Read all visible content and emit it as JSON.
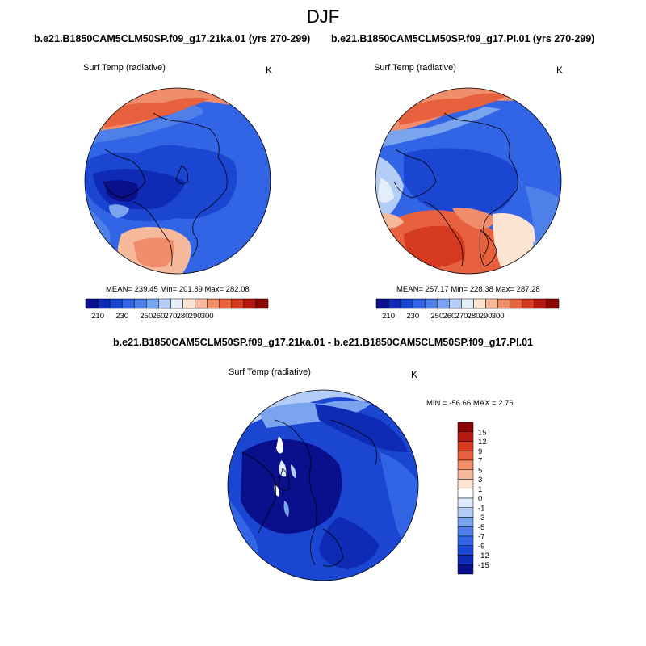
{
  "season": "DJF",
  "panels": [
    {
      "id": "run1",
      "title": "b.e21.B1850CAM5CLM50SP.f09_g17.21ka.01 (yrs 270-299)",
      "variable": "Surf Temp (radiative)",
      "units": "K",
      "stats": "MEAN= 239.45  Min= 201.89  Max= 282.08"
    },
    {
      "id": "run2",
      "title": "b.e21.B1850CAM5CLM50SP.f09_g17.PI.01 (yrs 270-299)",
      "variable": "Surf Temp (radiative)",
      "units": "K",
      "stats": "MEAN= 257.17  Min= 228.38  Max= 287.28"
    },
    {
      "id": "diff",
      "title": "b.e21.B1850CAM5CLM50SP.f09_g17.21ka.01 - b.e21.B1850CAM5CLM50SP.f09_g17.PI.01",
      "variable": "Surf Temp (radiative)",
      "units": "K",
      "stats": "MIN = -56.66 MAX =   2.76"
    }
  ],
  "abs_colorbar": {
    "tick_labels": [
      "210",
      "230",
      "250",
      "260",
      "270",
      "280",
      "290",
      "300"
    ],
    "colors": [
      "#0a0f8c",
      "#0f2ab4",
      "#1a46d2",
      "#3264e6",
      "#4f7fe8",
      "#7aa4ee",
      "#b4cdf6",
      "#e4eefb",
      "#fde4d2",
      "#f7b99b",
      "#f08e6c",
      "#e8613e",
      "#d63a20",
      "#b41810",
      "#8c0505"
    ]
  },
  "diff_colorbar": {
    "tick_labels": [
      "15",
      "12",
      "9",
      "7",
      "5",
      "3",
      "1",
      "0",
      "-1",
      "-3",
      "-5",
      "-7",
      "-9",
      "-12",
      "-15"
    ],
    "colors": [
      "#8c0505",
      "#b41810",
      "#d63a20",
      "#e8613e",
      "#f08e6c",
      "#f7b99b",
      "#fde4d2",
      "#ffffff",
      "#dce8fb",
      "#b4cdf6",
      "#7aa4ee",
      "#4f7fe8",
      "#3264e6",
      "#1a46d2",
      "#0f2ab4",
      "#0a0f8c"
    ]
  },
  "chart_data": [
    {
      "type": "heatmap",
      "title": "b.e21.B1850CAM5CLM50SP.f09_g17.21ka.01 (yrs 270-299)",
      "subtitle": "Surf Temp (radiative)",
      "units": "K",
      "projection": "north polar stereographic",
      "mean": 239.45,
      "min": 201.89,
      "max": 282.08,
      "levels": [
        210,
        230,
        250,
        260,
        270,
        280,
        290,
        300
      ]
    },
    {
      "type": "heatmap",
      "title": "b.e21.B1850CAM5CLM50SP.f09_g17.PI.01 (yrs 270-299)",
      "subtitle": "Surf Temp (radiative)",
      "units": "K",
      "projection": "north polar stereographic",
      "mean": 257.17,
      "min": 228.38,
      "max": 287.28,
      "levels": [
        210,
        230,
        250,
        260,
        270,
        280,
        290,
        300
      ]
    },
    {
      "type": "heatmap",
      "title": "b.e21.B1850CAM5CLM50SP.f09_g17.21ka.01 - b.e21.B1850CAM5CLM50SP.f09_g17.PI.01",
      "subtitle": "Surf Temp (radiative)",
      "units": "K",
      "projection": "north polar stereographic",
      "min": -56.66,
      "max": 2.76,
      "levels": [
        -15,
        -12,
        -9,
        -7,
        -5,
        -3,
        -1,
        0,
        1,
        3,
        5,
        7,
        9,
        12,
        15
      ]
    }
  ]
}
